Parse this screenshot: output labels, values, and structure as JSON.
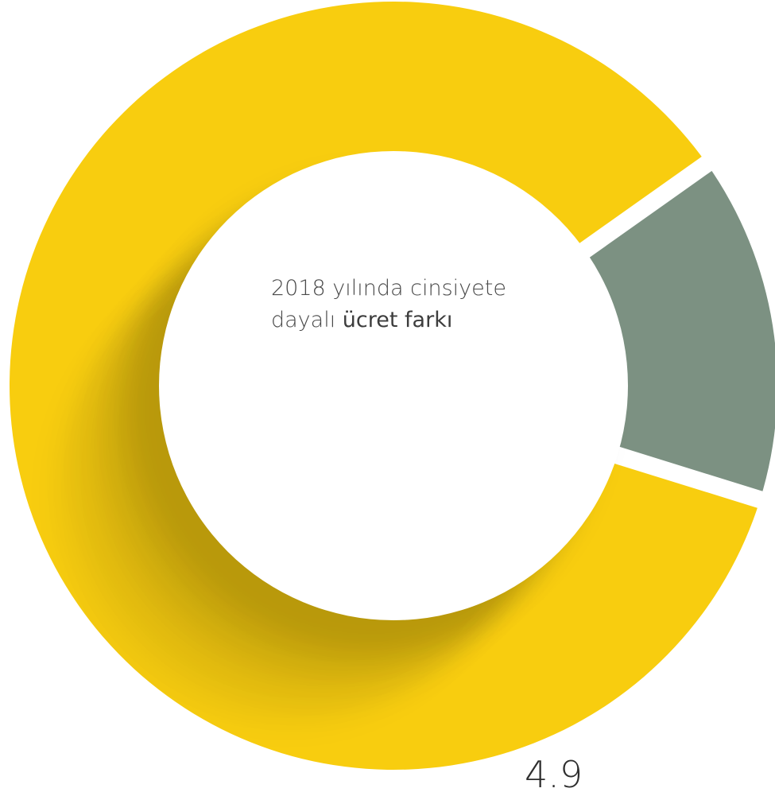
{
  "chart_data": {
    "type": "pie",
    "donut": true,
    "slices": [
      {
        "value": 14.6,
        "color": "#7c9182"
      },
      {
        "value": 85.4,
        "color": "#f8cd0f"
      }
    ],
    "center_label": {
      "line1": "2018 yılında cinsiyete",
      "line2_prefix": "dayalı ",
      "line2_emphasis": "ücret farkı"
    },
    "value_label": "4.9"
  },
  "colors": {
    "accent": "#f8cd0f",
    "secondary": "#7c9182",
    "text": "#4a4a4a"
  }
}
